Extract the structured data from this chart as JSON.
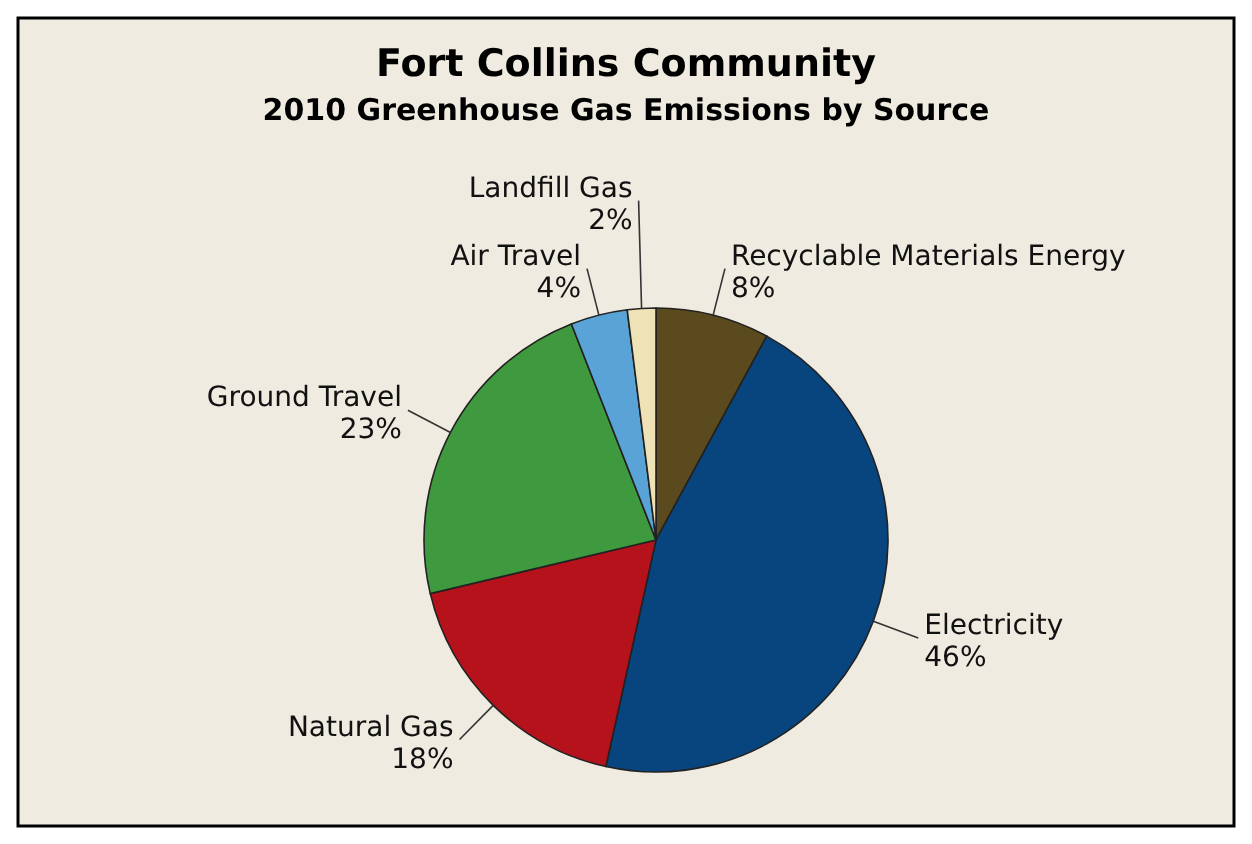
{
  "chart_data": {
    "type": "pie",
    "title": "Fort Collins Community",
    "subtitle": "2010 Greenhouse Gas Emissions by Source",
    "categories": [
      "Recyclable Materials Energy",
      "Electricity",
      "Natural Gas",
      "Ground Travel",
      "Air Travel",
      "Landfill Gas"
    ],
    "values": [
      8,
      46,
      18,
      23,
      4,
      2
    ],
    "colors": [
      "#5c4a1f",
      "#08457e",
      "#b5121b",
      "#3f9a3f",
      "#5aa3d6",
      "#efe2b6"
    ],
    "value_labels": [
      "8%",
      "46%",
      "18%",
      "23%",
      "4%",
      "2%"
    ]
  }
}
